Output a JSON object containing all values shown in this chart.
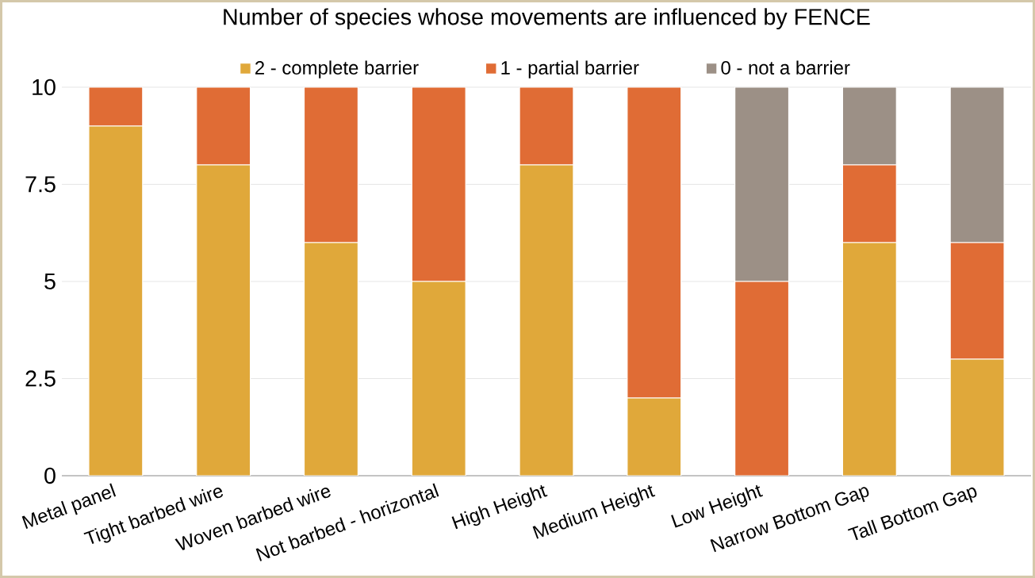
{
  "chart_data": {
    "type": "bar",
    "title": "Number of species whose movements are influenced by FENCE",
    "categories": [
      "Metal panel",
      "Tight barbed wire",
      "Woven barbed wire",
      "Not barbed - horizontal",
      "High Height",
      "Medium Height",
      "Low Height",
      "Narrow Bottom Gap",
      "Tall Bottom Gap"
    ],
    "series": [
      {
        "name": "2 - complete barrier",
        "color": "#e0a83a",
        "values": [
          9,
          8,
          6,
          5,
          8,
          2,
          0,
          6,
          3
        ]
      },
      {
        "name": "1 - partial barrier",
        "color": "#e06c35",
        "values": [
          1,
          2,
          4,
          5,
          2,
          8,
          5,
          2,
          3
        ]
      },
      {
        "name": "0 - not a barrier",
        "color": "#9c9086",
        "values": [
          0,
          0,
          0,
          0,
          0,
          0,
          5,
          2,
          4
        ]
      }
    ],
    "stacked": true,
    "ylim": [
      0,
      10
    ],
    "yticks": [
      0,
      2.5,
      5,
      7.5,
      10
    ],
    "grid": "y",
    "legend": "top"
  }
}
